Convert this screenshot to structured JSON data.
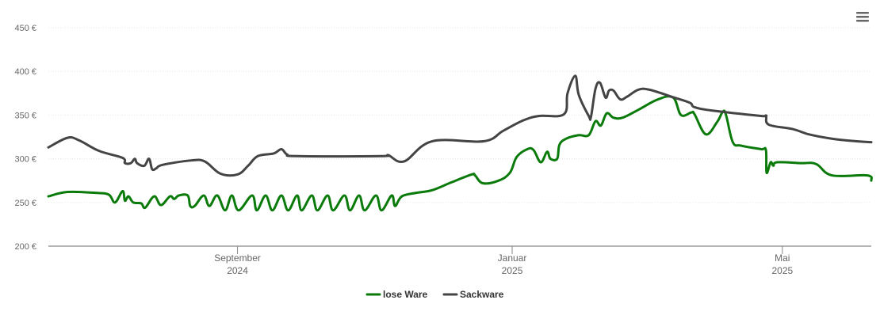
{
  "chart_data": {
    "type": "line",
    "title": "",
    "xlabel": "",
    "ylabel": "",
    "x_unit": "days since 2024-06-09",
    "xlim": [
      0,
      365.5
    ],
    "ylim": [
      200,
      450
    ],
    "grid": true,
    "y_ticks": [
      {
        "value": 200,
        "label": "200 €"
      },
      {
        "value": 250,
        "label": "250 €"
      },
      {
        "value": 300,
        "label": "300 €"
      },
      {
        "value": 350,
        "label": "350 €"
      },
      {
        "value": 400,
        "label": "400 €"
      },
      {
        "value": 450,
        "label": "450 €"
      }
    ],
    "x_ticks": [
      {
        "value": 84,
        "label": "September",
        "sublabel": "2024"
      },
      {
        "value": 206,
        "label": "Januar",
        "sublabel": "2025"
      },
      {
        "value": 326,
        "label": "Mai",
        "sublabel": "2025"
      }
    ],
    "legend_position": "bottom-center",
    "series": [
      {
        "name": "lose Ware",
        "color": "#0a7a0a",
        "points": [
          [
            0,
            257
          ],
          [
            8.5,
            262
          ],
          [
            20.8,
            261
          ],
          [
            26.8,
            259
          ],
          [
            29.6,
            250
          ],
          [
            33,
            263
          ],
          [
            34,
            252
          ],
          [
            35.6,
            257
          ],
          [
            37.7,
            250
          ],
          [
            41.2,
            249
          ],
          [
            43,
            244
          ],
          [
            47,
            257
          ],
          [
            50,
            247
          ],
          [
            54,
            257
          ],
          [
            55.9,
            254
          ],
          [
            58,
            258
          ],
          [
            61.9,
            258
          ],
          [
            63,
            246
          ],
          [
            65,
            246
          ],
          [
            69,
            258
          ],
          [
            71.5,
            246
          ],
          [
            75,
            258
          ],
          [
            78.5,
            241
          ],
          [
            81.5,
            258
          ],
          [
            84.5,
            241
          ],
          [
            90.5,
            258
          ],
          [
            92.6,
            241
          ],
          [
            96.5,
            258
          ],
          [
            99.5,
            241
          ],
          [
            103.5,
            258
          ],
          [
            106.5,
            241
          ],
          [
            110.5,
            258
          ],
          [
            112.5,
            241
          ],
          [
            117,
            258
          ],
          [
            119.5,
            241
          ],
          [
            124,
            258
          ],
          [
            126.5,
            241
          ],
          [
            131.5,
            258
          ],
          [
            134,
            241
          ],
          [
            138,
            258
          ],
          [
            140.5,
            241
          ],
          [
            145.5,
            258
          ],
          [
            148,
            241
          ],
          [
            152.5,
            258
          ],
          [
            154,
            246
          ],
          [
            157,
            257
          ],
          [
            163.4,
            261
          ],
          [
            170.4,
            264
          ],
          [
            179,
            273
          ],
          [
            188,
            282
          ],
          [
            189.5,
            281
          ],
          [
            193,
            272
          ],
          [
            200,
            275
          ],
          [
            205,
            284
          ],
          [
            208,
            302
          ],
          [
            212.7,
            311
          ],
          [
            215.5,
            310
          ],
          [
            218.7,
            296
          ],
          [
            221.5,
            308
          ],
          [
            223,
            300
          ],
          [
            226,
            300
          ],
          [
            227,
            316
          ],
          [
            230,
            323
          ],
          [
            235.6,
            327
          ],
          [
            240,
            327
          ],
          [
            243,
            343
          ],
          [
            245.4,
            338
          ],
          [
            248,
            352
          ],
          [
            251,
            347
          ],
          [
            255,
            347
          ],
          [
            262,
            356
          ],
          [
            270.8,
            368
          ],
          [
            277.5,
            370
          ],
          [
            281,
            350
          ],
          [
            285.6,
            353
          ],
          [
            287,
            351
          ],
          [
            292,
            328
          ],
          [
            297,
            342
          ],
          [
            299.6,
            354
          ],
          [
            301,
            350
          ],
          [
            304,
            319
          ],
          [
            307.7,
            315
          ],
          [
            316.5,
            311
          ],
          [
            318.7,
            310
          ],
          [
            319,
            284
          ],
          [
            320.8,
            296
          ],
          [
            322,
            292
          ],
          [
            323.6,
            296
          ],
          [
            334,
            295
          ],
          [
            341,
            294
          ],
          [
            348,
            281
          ],
          [
            363.7,
            281
          ],
          [
            365.5,
            275
          ]
        ]
      },
      {
        "name": "Sackware",
        "color": "#444444",
        "points": [
          [
            0,
            313
          ],
          [
            8.5,
            324
          ],
          [
            13.7,
            321
          ],
          [
            22.5,
            309
          ],
          [
            33,
            301
          ],
          [
            34,
            295
          ],
          [
            36.6,
            295
          ],
          [
            38.4,
            300
          ],
          [
            39.4,
            295
          ],
          [
            42.6,
            292
          ],
          [
            44.7,
            300
          ],
          [
            46.1,
            288
          ],
          [
            47.9,
            289
          ],
          [
            50.7,
            293
          ],
          [
            63,
            298
          ],
          [
            69.4,
            297
          ],
          [
            76.4,
            283
          ],
          [
            84,
            282
          ],
          [
            88.7,
            292
          ],
          [
            93,
            303
          ],
          [
            100,
            306
          ],
          [
            103.5,
            311
          ],
          [
            106,
            305
          ],
          [
            110.6,
            303
          ],
          [
            147.5,
            303
          ],
          [
            151,
            304
          ],
          [
            158,
            297
          ],
          [
            170.4,
            320
          ],
          [
            193.3,
            320
          ],
          [
            202,
            332
          ],
          [
            211,
            344
          ],
          [
            218,
            349
          ],
          [
            229,
            351
          ],
          [
            230.6,
            375
          ],
          [
            234,
            395
          ],
          [
            235.6,
            373
          ],
          [
            240,
            349
          ],
          [
            241,
            348
          ],
          [
            243,
            380
          ],
          [
            245,
            387
          ],
          [
            247.5,
            370
          ],
          [
            249,
            378
          ],
          [
            251,
            378
          ],
          [
            254,
            368
          ],
          [
            257,
            371
          ],
          [
            262,
            379
          ],
          [
            267,
            379
          ],
          [
            278,
            370
          ],
          [
            285,
            364
          ],
          [
            287,
            359
          ],
          [
            295.4,
            355
          ],
          [
            316.5,
            349
          ],
          [
            318.7,
            349
          ],
          [
            320,
            339
          ],
          [
            330.6,
            334
          ],
          [
            337.7,
            328
          ],
          [
            348,
            323
          ],
          [
            359,
            320
          ],
          [
            365.5,
            319
          ]
        ]
      }
    ]
  },
  "menu_icon": "hamburger-menu-icon"
}
